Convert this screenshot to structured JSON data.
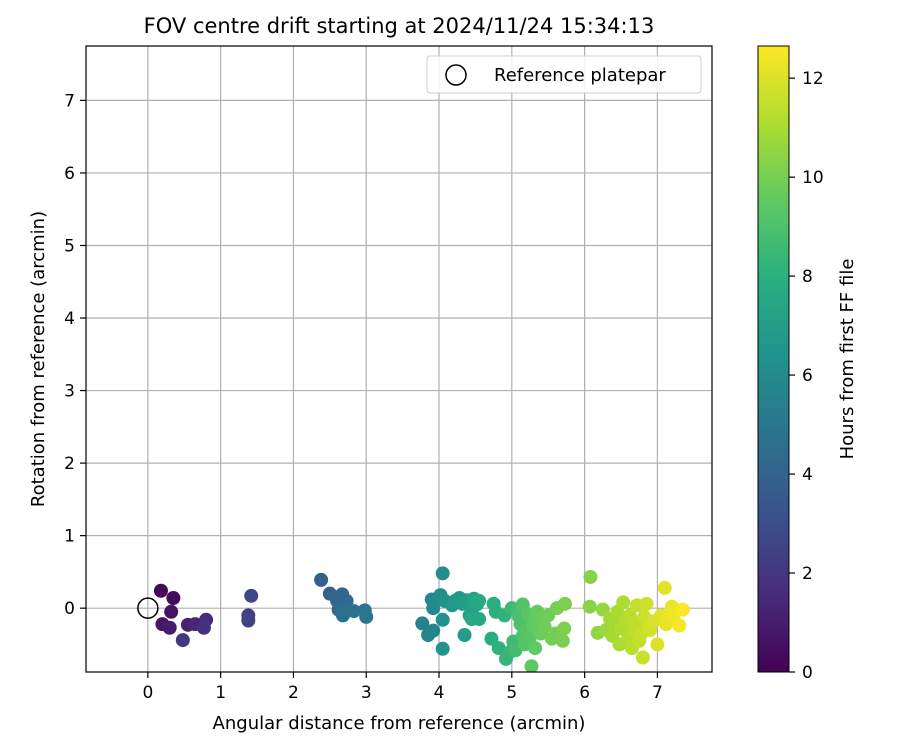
{
  "chart_data": {
    "type": "scatter",
    "title": "FOV centre drift starting at 2024/11/24 15:34:13",
    "xlabel": "Angular distance from reference (arcmin)",
    "ylabel": "Rotation from reference (arcmin)",
    "xlim": [
      -0.85,
      7.75
    ],
    "ylim": [
      -0.88,
      7.75
    ],
    "xticks": [
      "0",
      "1",
      "2",
      "3",
      "4",
      "5",
      "6",
      "7"
    ],
    "yticks": [
      "0",
      "1",
      "2",
      "3",
      "4",
      "5",
      "6",
      "7"
    ],
    "grid": true,
    "legend": {
      "position": "top-right",
      "entries": [
        {
          "label": "Reference platepar",
          "marker": "open-circle"
        }
      ]
    },
    "reference_point": {
      "x": 0,
      "y": 0
    },
    "colorbar": {
      "label": "Hours from first FF file",
      "colormap": "viridis",
      "range": [
        0,
        12.65
      ],
      "ticks": [
        "0",
        "2",
        "4",
        "6",
        "8",
        "10",
        "12"
      ]
    },
    "points": [
      {
        "x": 0.18,
        "y": 0.24,
        "c": 0.2
      },
      {
        "x": 0.35,
        "y": 0.14,
        "c": 0.4
      },
      {
        "x": 0.32,
        "y": -0.05,
        "c": 0.6
      },
      {
        "x": 0.2,
        "y": -0.22,
        "c": 0.8
      },
      {
        "x": 0.3,
        "y": -0.27,
        "c": 1.0
      },
      {
        "x": 0.55,
        "y": -0.23,
        "c": 1.2
      },
      {
        "x": 0.65,
        "y": -0.22,
        "c": 1.4
      },
      {
        "x": 0.8,
        "y": -0.16,
        "c": 1.6
      },
      {
        "x": 0.77,
        "y": -0.27,
        "c": 1.8
      },
      {
        "x": 0.48,
        "y": -0.44,
        "c": 2.0
      },
      {
        "x": 1.38,
        "y": -0.1,
        "c": 2.3
      },
      {
        "x": 1.38,
        "y": -0.17,
        "c": 2.5
      },
      {
        "x": 1.42,
        "y": 0.17,
        "c": 2.7
      },
      {
        "x": 2.38,
        "y": 0.39,
        "c": 3.8
      },
      {
        "x": 2.5,
        "y": 0.2,
        "c": 4.0
      },
      {
        "x": 2.6,
        "y": 0.1,
        "c": 4.1
      },
      {
        "x": 2.67,
        "y": 0.19,
        "c": 4.2
      },
      {
        "x": 2.73,
        "y": 0.1,
        "c": 4.3
      },
      {
        "x": 2.62,
        "y": -0.02,
        "c": 4.4
      },
      {
        "x": 2.7,
        "y": -0.03,
        "c": 4.5
      },
      {
        "x": 2.68,
        "y": -0.1,
        "c": 4.6
      },
      {
        "x": 2.83,
        "y": -0.04,
        "c": 4.7
      },
      {
        "x": 2.98,
        "y": -0.03,
        "c": 4.8
      },
      {
        "x": 3.0,
        "y": -0.12,
        "c": 4.9
      },
      {
        "x": 3.77,
        "y": -0.21,
        "c": 5.5
      },
      {
        "x": 3.85,
        "y": -0.37,
        "c": 5.6
      },
      {
        "x": 3.92,
        "y": -0.31,
        "c": 5.7
      },
      {
        "x": 3.9,
        "y": 0.12,
        "c": 5.8
      },
      {
        "x": 3.92,
        "y": 0.0,
        "c": 5.9
      },
      {
        "x": 4.0,
        "y": 0.15,
        "c": 6.0
      },
      {
        "x": 4.05,
        "y": 0.48,
        "c": 6.1
      },
      {
        "x": 4.02,
        "y": 0.18,
        "c": 6.2
      },
      {
        "x": 4.08,
        "y": 0.1,
        "c": 6.3
      },
      {
        "x": 4.05,
        "y": -0.16,
        "c": 6.4
      },
      {
        "x": 4.05,
        "y": -0.56,
        "c": 6.5
      },
      {
        "x": 4.18,
        "y": 0.04,
        "c": 6.6
      },
      {
        "x": 4.22,
        "y": 0.1,
        "c": 6.7
      },
      {
        "x": 4.28,
        "y": 0.14,
        "c": 6.8
      },
      {
        "x": 4.32,
        "y": 0.06,
        "c": 6.9
      },
      {
        "x": 4.35,
        "y": -0.37,
        "c": 7.0
      },
      {
        "x": 4.38,
        "y": 0.11,
        "c": 7.1
      },
      {
        "x": 4.42,
        "y": -0.1,
        "c": 7.2
      },
      {
        "x": 4.45,
        "y": -0.05,
        "c": 7.3
      },
      {
        "x": 4.48,
        "y": 0.13,
        "c": 7.4
      },
      {
        "x": 4.52,
        "y": 0.05,
        "c": 7.5
      },
      {
        "x": 4.55,
        "y": -0.15,
        "c": 7.6
      },
      {
        "x": 4.45,
        "y": -0.15,
        "c": 7.6
      },
      {
        "x": 4.55,
        "y": 0.1,
        "c": 7.7
      },
      {
        "x": 4.72,
        "y": -0.42,
        "c": 7.8
      },
      {
        "x": 4.75,
        "y": 0.06,
        "c": 7.9
      },
      {
        "x": 4.78,
        "y": -0.05,
        "c": 8.0
      },
      {
        "x": 4.82,
        "y": -0.55,
        "c": 8.1
      },
      {
        "x": 4.9,
        "y": -0.1,
        "c": 8.2
      },
      {
        "x": 4.92,
        "y": -0.7,
        "c": 8.3
      },
      {
        "x": 4.98,
        "y": -0.6,
        "c": 8.4
      },
      {
        "x": 5.0,
        "y": 0.0,
        "c": 8.5
      },
      {
        "x": 5.02,
        "y": -0.46,
        "c": 8.6
      },
      {
        "x": 5.05,
        "y": -0.58,
        "c": 8.7
      },
      {
        "x": 5.08,
        "y": -0.03,
        "c": 8.8
      },
      {
        "x": 5.1,
        "y": -0.12,
        "c": 8.9
      },
      {
        "x": 5.12,
        "y": -0.22,
        "c": 9.0
      },
      {
        "x": 5.15,
        "y": 0.05,
        "c": 9.1
      },
      {
        "x": 5.15,
        "y": -0.38,
        "c": 9.1
      },
      {
        "x": 5.18,
        "y": -0.5,
        "c": 9.2
      },
      {
        "x": 5.2,
        "y": -0.3,
        "c": 9.2
      },
      {
        "x": 5.22,
        "y": -0.08,
        "c": 9.3
      },
      {
        "x": 5.25,
        "y": -0.4,
        "c": 9.3
      },
      {
        "x": 5.28,
        "y": -0.15,
        "c": 9.4
      },
      {
        "x": 5.27,
        "y": -0.8,
        "c": 9.4
      },
      {
        "x": 5.3,
        "y": -0.25,
        "c": 9.5
      },
      {
        "x": 5.32,
        "y": -0.55,
        "c": 9.5
      },
      {
        "x": 5.35,
        "y": -0.05,
        "c": 9.6
      },
      {
        "x": 5.38,
        "y": -0.2,
        "c": 9.6
      },
      {
        "x": 5.4,
        "y": -0.35,
        "c": 9.7
      },
      {
        "x": 5.42,
        "y": -0.12,
        "c": 9.7
      },
      {
        "x": 5.45,
        "y": -0.25,
        "c": 9.8
      },
      {
        "x": 5.5,
        "y": -0.1,
        "c": 9.8
      },
      {
        "x": 5.55,
        "y": -0.42,
        "c": 9.9
      },
      {
        "x": 5.6,
        "y": -0.35,
        "c": 9.9
      },
      {
        "x": 5.62,
        "y": 0.0,
        "c": 10.0
      },
      {
        "x": 5.7,
        "y": -0.45,
        "c": 10.0
      },
      {
        "x": 5.72,
        "y": -0.28,
        "c": 10.1
      },
      {
        "x": 5.73,
        "y": 0.06,
        "c": 10.1
      },
      {
        "x": 6.07,
        "y": 0.02,
        "c": 10.3
      },
      {
        "x": 6.08,
        "y": 0.43,
        "c": 10.3
      },
      {
        "x": 6.18,
        "y": -0.34,
        "c": 10.5
      },
      {
        "x": 6.25,
        "y": -0.02,
        "c": 10.6
      },
      {
        "x": 6.3,
        "y": -0.3,
        "c": 10.7
      },
      {
        "x": 6.35,
        "y": -0.15,
        "c": 10.8
      },
      {
        "x": 6.38,
        "y": -0.38,
        "c": 10.9
      },
      {
        "x": 6.42,
        "y": -0.22,
        "c": 10.9
      },
      {
        "x": 6.45,
        "y": -0.05,
        "c": 11.0
      },
      {
        "x": 6.48,
        "y": -0.5,
        "c": 11.0
      },
      {
        "x": 6.5,
        "y": -0.28,
        "c": 11.1
      },
      {
        "x": 6.53,
        "y": 0.08,
        "c": 11.1
      },
      {
        "x": 6.55,
        "y": -0.18,
        "c": 11.2
      },
      {
        "x": 6.6,
        "y": -0.4,
        "c": 11.2
      },
      {
        "x": 6.62,
        "y": -0.1,
        "c": 11.3
      },
      {
        "x": 6.65,
        "y": -0.55,
        "c": 11.3
      },
      {
        "x": 6.68,
        "y": -0.3,
        "c": 11.4
      },
      {
        "x": 6.7,
        "y": -0.2,
        "c": 11.4
      },
      {
        "x": 6.72,
        "y": 0.04,
        "c": 11.5
      },
      {
        "x": 6.75,
        "y": -0.45,
        "c": 11.5
      },
      {
        "x": 6.78,
        "y": -0.35,
        "c": 11.6
      },
      {
        "x": 6.8,
        "y": -0.68,
        "c": 11.6
      },
      {
        "x": 6.82,
        "y": -0.12,
        "c": 11.7
      },
      {
        "x": 6.85,
        "y": 0.06,
        "c": 11.7
      },
      {
        "x": 6.88,
        "y": -0.25,
        "c": 11.8
      },
      {
        "x": 6.9,
        "y": -0.3,
        "c": 11.8
      },
      {
        "x": 6.95,
        "y": -0.18,
        "c": 11.9
      },
      {
        "x": 7.0,
        "y": -0.5,
        "c": 12.0
      },
      {
        "x": 7.05,
        "y": -0.1,
        "c": 12.1
      },
      {
        "x": 7.1,
        "y": 0.28,
        "c": 12.1
      },
      {
        "x": 7.12,
        "y": -0.22,
        "c": 12.2
      },
      {
        "x": 7.15,
        "y": -0.15,
        "c": 12.3
      },
      {
        "x": 7.2,
        "y": 0.02,
        "c": 12.3
      },
      {
        "x": 7.22,
        "y": -0.1,
        "c": 12.4
      },
      {
        "x": 7.3,
        "y": -0.24,
        "c": 12.5
      },
      {
        "x": 7.35,
        "y": -0.02,
        "c": 12.6
      }
    ]
  }
}
